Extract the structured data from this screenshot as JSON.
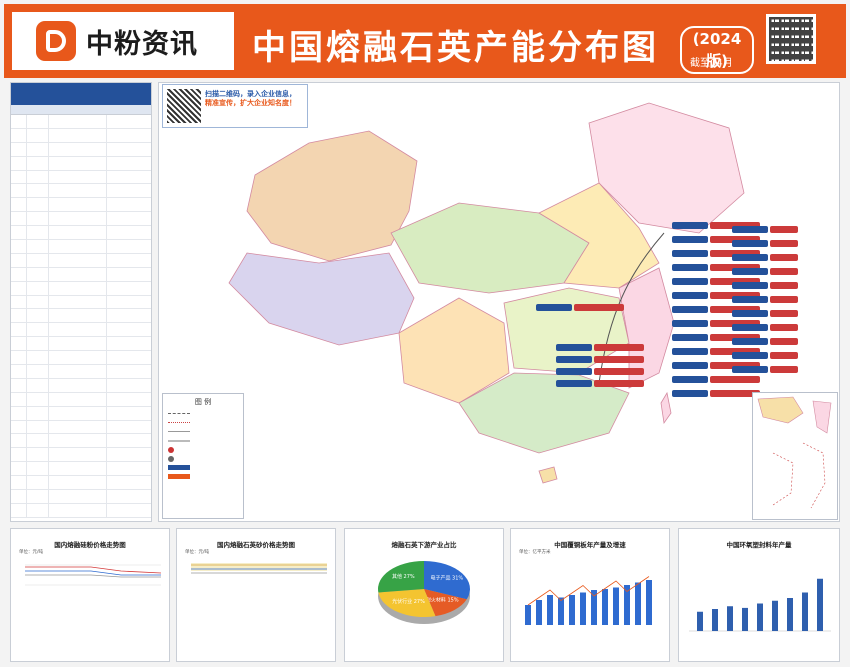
{
  "header": {
    "logo_text": "中粉资讯",
    "title": "中国熔融石英产能分布图",
    "edition": "(2024版)",
    "cutoff": "截至04月"
  },
  "scan_box": {
    "line1": "扫描二维码，录入企业信息，",
    "line2": "精准宣传，扩大企业知名度！"
  },
  "legend": {
    "title": "图  例"
  },
  "charts": [
    {
      "title": "国内熔融硅粉价格走势图",
      "ylabel": "单位：元/吨"
    },
    {
      "title": "国内熔融石英砂价格走势图",
      "ylabel": "单位：元/吨"
    },
    {
      "title": "熔融石英下游产业占比"
    },
    {
      "title": "中国覆铜板年产量及增速",
      "ylabel": "单位：亿平方米"
    },
    {
      "title": "中国环氧塑封料年产量"
    }
  ],
  "pie_data": {
    "type": "pie",
    "slices": [
      {
        "label": "电子产品",
        "value": 31.0
      },
      {
        "label": "耐火材料",
        "value": 15.0
      },
      {
        "label": "光伏行业",
        "value": 27.0
      },
      {
        "label": "其他",
        "value": 27.0
      }
    ],
    "colors": [
      "#2f6bd0",
      "#e55b25",
      "#f4c430",
      "#37a346"
    ]
  },
  "colors": {
    "brand": "#e8581b",
    "table_header": "#24519a",
    "tag_red": "#cc3a3a"
  }
}
